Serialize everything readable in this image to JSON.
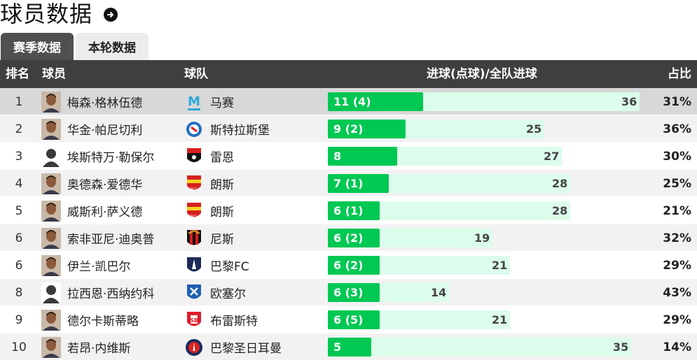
{
  "title": "球员数据",
  "tabs": [
    {
      "label": "赛季数据",
      "active": true
    },
    {
      "label": "本轮数据",
      "active": false
    }
  ],
  "columns": {
    "rank": "排名",
    "player": "球员",
    "team": "球队",
    "goals": "进球(点球)/全队进球",
    "share": "占比"
  },
  "colors": {
    "bar": "#00c853",
    "bar_bg": "#dcfcec",
    "header": "#3f3f3f"
  },
  "rows": [
    {
      "rank": "1",
      "player": "梅森·格林伍德",
      "team": "马赛",
      "goals": 11,
      "label": "11 (4)",
      "total": 36,
      "pct": "31%",
      "avatar": "photo-avatar-icon",
      "badge": "marseille-badge-icon"
    },
    {
      "rank": "2",
      "player": "华金·帕尼切利",
      "team": "斯特拉斯堡",
      "goals": 9,
      "label": "9 (2)",
      "total": 25,
      "pct": "36%",
      "avatar": "photo-avatar-icon",
      "badge": "strasbourg-badge-icon"
    },
    {
      "rank": "3",
      "player": "埃斯特万·勒保尔",
      "team": "雷恩",
      "goals": 8,
      "label": "8",
      "total": 27,
      "pct": "30%",
      "avatar": "silhouette-avatar-icon",
      "badge": "rennes-badge-icon"
    },
    {
      "rank": "4",
      "player": "奥德森·爱德华",
      "team": "朗斯",
      "goals": 7,
      "label": "7 (1)",
      "total": 28,
      "pct": "25%",
      "avatar": "photo-avatar-icon",
      "badge": "lens-badge-icon"
    },
    {
      "rank": "5",
      "player": "威斯利·萨义德",
      "team": "朗斯",
      "goals": 6,
      "label": "6 (1)",
      "total": 28,
      "pct": "21%",
      "avatar": "photo-avatar-icon",
      "badge": "lens-badge-icon"
    },
    {
      "rank": "6",
      "player": "索非亚尼·迪奥普",
      "team": "尼斯",
      "goals": 6,
      "label": "6 (2)",
      "total": 19,
      "pct": "32%",
      "avatar": "photo-avatar-icon",
      "badge": "nice-badge-icon"
    },
    {
      "rank": "6",
      "player": "伊兰·凯巴尔",
      "team": "巴黎FC",
      "goals": 6,
      "label": "6 (2)",
      "total": 21,
      "pct": "29%",
      "avatar": "photo-avatar-icon",
      "badge": "paris-fc-badge-icon"
    },
    {
      "rank": "8",
      "player": "拉西恩·西纳约科",
      "team": "欧塞尔",
      "goals": 6,
      "label": "6 (3)",
      "total": 14,
      "pct": "43%",
      "avatar": "silhouette-avatar-icon",
      "badge": "auxerre-badge-icon"
    },
    {
      "rank": "9",
      "player": "德尔卡斯蒂略",
      "team": "布雷斯特",
      "goals": 6,
      "label": "6 (5)",
      "total": 21,
      "pct": "29%",
      "avatar": "photo-avatar-icon",
      "badge": "brest-badge-icon"
    },
    {
      "rank": "10",
      "player": "若昂·内维斯",
      "team": "巴黎圣日耳曼",
      "goals": 5,
      "label": "5",
      "total": 35,
      "pct": "14%",
      "avatar": "photo-avatar-icon",
      "badge": "psg-badge-icon"
    }
  ]
}
